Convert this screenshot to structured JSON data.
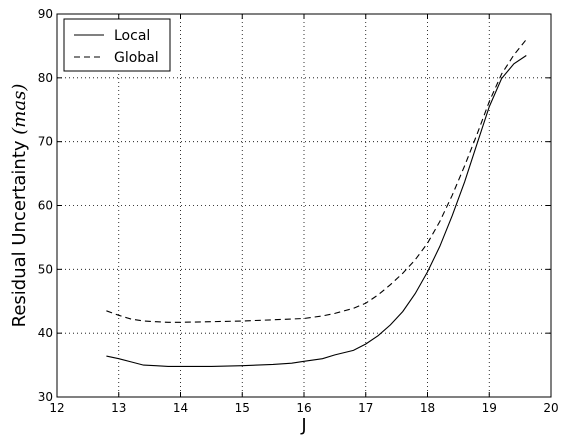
{
  "chart_data": {
    "type": "line",
    "title": "",
    "xlabel": "J",
    "ylabel_main": "Residual Uncertainty ",
    "ylabel_unit": "(mas)",
    "xlim": [
      12,
      20
    ],
    "ylim": [
      30,
      90
    ],
    "xticks": [
      12,
      13,
      14,
      15,
      16,
      17,
      18,
      19,
      20
    ],
    "yticks": [
      30,
      40,
      50,
      60,
      70,
      80,
      90
    ],
    "grid": true,
    "legend_position": "top-left",
    "series": [
      {
        "name": "Local",
        "style": "solid",
        "color": "#000000",
        "points": [
          [
            12.8,
            36.4
          ],
          [
            13.0,
            36.0
          ],
          [
            13.2,
            35.5
          ],
          [
            13.4,
            35.0
          ],
          [
            13.6,
            34.9
          ],
          [
            13.8,
            34.8
          ],
          [
            14.0,
            34.8
          ],
          [
            14.5,
            34.8
          ],
          [
            15.0,
            34.9
          ],
          [
            15.5,
            35.1
          ],
          [
            15.8,
            35.3
          ],
          [
            16.0,
            35.6
          ],
          [
            16.3,
            36.0
          ],
          [
            16.5,
            36.6
          ],
          [
            16.8,
            37.3
          ],
          [
            17.0,
            38.3
          ],
          [
            17.2,
            39.6
          ],
          [
            17.4,
            41.3
          ],
          [
            17.6,
            43.4
          ],
          [
            17.8,
            46.2
          ],
          [
            18.0,
            49.6
          ],
          [
            18.2,
            53.6
          ],
          [
            18.4,
            58.4
          ],
          [
            18.6,
            63.7
          ],
          [
            18.8,
            69.6
          ],
          [
            19.0,
            75.5
          ],
          [
            19.2,
            79.9
          ],
          [
            19.4,
            82.2
          ],
          [
            19.6,
            83.5
          ]
        ]
      },
      {
        "name": "Global",
        "style": "dashed",
        "color": "#000000",
        "points": [
          [
            12.8,
            43.5
          ],
          [
            13.0,
            42.8
          ],
          [
            13.2,
            42.2
          ],
          [
            13.4,
            41.9
          ],
          [
            13.6,
            41.8
          ],
          [
            13.8,
            41.7
          ],
          [
            14.0,
            41.7
          ],
          [
            14.5,
            41.8
          ],
          [
            15.0,
            41.9
          ],
          [
            15.5,
            42.1
          ],
          [
            16.0,
            42.3
          ],
          [
            16.3,
            42.7
          ],
          [
            16.5,
            43.1
          ],
          [
            16.8,
            43.9
          ],
          [
            17.0,
            44.7
          ],
          [
            17.2,
            46.0
          ],
          [
            17.4,
            47.6
          ],
          [
            17.6,
            49.4
          ],
          [
            17.8,
            51.5
          ],
          [
            18.0,
            54.1
          ],
          [
            18.2,
            57.5
          ],
          [
            18.4,
            61.6
          ],
          [
            18.6,
            66.2
          ],
          [
            18.8,
            71.1
          ],
          [
            19.0,
            76.3
          ],
          [
            19.2,
            80.6
          ],
          [
            19.4,
            83.6
          ],
          [
            19.6,
            86.0
          ]
        ]
      }
    ]
  }
}
